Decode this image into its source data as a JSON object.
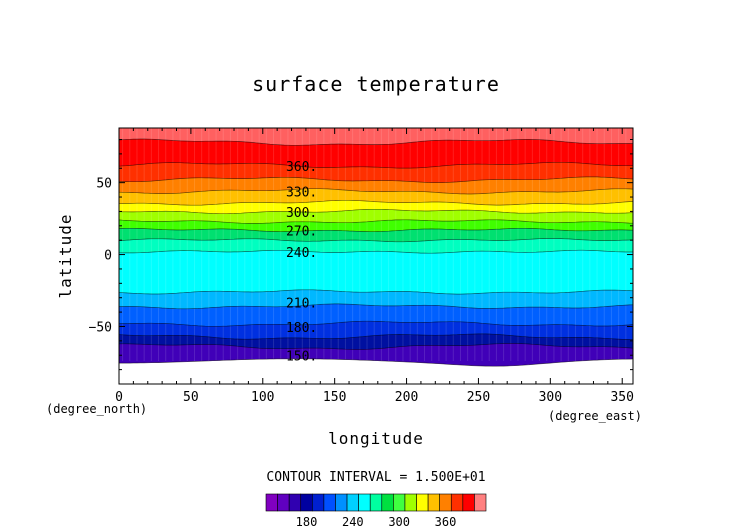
{
  "chart_data": {
    "type": "heatmap",
    "title": "surface temperature",
    "xlabel": "longitude",
    "ylabel": "latitude",
    "x_unit": "(degree_east)",
    "y_unit": "(degree_north)",
    "xlim": [
      0,
      357.5
    ],
    "ylim": [
      -90,
      88
    ],
    "x_ticks": [
      0,
      50,
      100,
      150,
      200,
      250,
      300,
      350
    ],
    "y_ticks": [
      -50,
      0,
      50
    ],
    "contour_interval_text": "CONTOUR INTERVAL = 1.500E+01",
    "contour_levels": [
      150,
      165,
      180,
      195,
      210,
      225,
      240,
      255,
      270,
      285,
      300,
      315,
      330,
      345,
      360,
      375
    ],
    "band_colors": [
      "#ffffff",
      "#7a00c8",
      "#4000b8",
      "#0010a0",
      "#0030e0",
      "#0060ff",
      "#00b8ff",
      "#00ffff",
      "#00ffc0",
      "#00e070",
      "#40ff00",
      "#a0ff00",
      "#ffff00",
      "#ffc000",
      "#ff8000",
      "#ff3000",
      "#ff0000",
      "#ff6060"
    ],
    "contour_lines": [
      {
        "level": 150,
        "lat": -74
      },
      {
        "level": 165,
        "lat": -64
      },
      {
        "level": 180,
        "lat": -57
      },
      {
        "level": 195,
        "lat": -48
      },
      {
        "level": 210,
        "lat": -36
      },
      {
        "level": 225,
        "lat": -26
      },
      {
        "level": 240,
        "lat": 2
      },
      {
        "level": 255,
        "lat": 10
      },
      {
        "level": 270,
        "lat": 17
      },
      {
        "level": 285,
        "lat": 23
      },
      {
        "level": 300,
        "lat": 30
      },
      {
        "level": 315,
        "lat": 36
      },
      {
        "level": 330,
        "lat": 44
      },
      {
        "level": 345,
        "lat": 52
      },
      {
        "level": 360,
        "lat": 62
      },
      {
        "level": 375,
        "lat": 78
      }
    ],
    "contour_labels": [
      {
        "text": "360.",
        "lat": 61
      },
      {
        "text": "330.",
        "lat": 43
      },
      {
        "text": "300.",
        "lat": 29
      },
      {
        "text": "270.",
        "lat": 16
      },
      {
        "text": "240.",
        "lat": 1
      },
      {
        "text": "210.",
        "lat": -34
      },
      {
        "text": "180.",
        "lat": -51
      },
      {
        "text": "150.",
        "lat": -71
      }
    ],
    "colorbar": {
      "n_bins": 19,
      "ticks": [
        {
          "label": "180",
          "value": 180
        },
        {
          "label": "240",
          "value": 240
        },
        {
          "label": "300",
          "value": 300
        },
        {
          "label": "360",
          "value": 360
        }
      ],
      "min": 127.5,
      "max": 412.5
    }
  }
}
